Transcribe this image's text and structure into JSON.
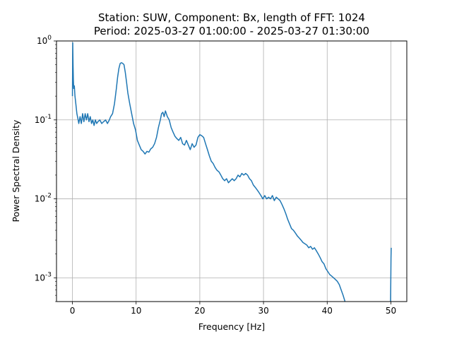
{
  "chart_data": {
    "type": "line",
    "title": [
      "Station: SUW, Component: Bx, length of FFT: 1024",
      "Period: 2025-03-27 01:00:00 - 2025-03-27 01:30:00"
    ],
    "xlabel": "Frequency [Hz]",
    "ylabel": "Power Spectral Density",
    "xlim": [
      -2.5,
      52.5
    ],
    "ylim": [
      0.0005,
      1
    ],
    "yscale": "log",
    "grid": true,
    "x_ticks": [
      0,
      10,
      20,
      30,
      40,
      50
    ],
    "x_tick_labels": [
      "0",
      "10",
      "20",
      "30",
      "40",
      "50"
    ],
    "y_ticks": [
      0.001,
      0.01,
      0.1,
      1
    ],
    "y_tick_labels": [
      "10^-3",
      "10^-2",
      "10^-1",
      "10^0"
    ],
    "series": [
      {
        "color": "#1f77b4",
        "x": [
          0.0,
          0.05,
          0.1,
          0.15,
          0.2,
          0.3,
          0.4,
          0.5,
          0.7,
          0.9,
          1.0,
          1.2,
          1.4,
          1.6,
          1.8,
          2.0,
          2.2,
          2.4,
          2.6,
          2.8,
          3.0,
          3.2,
          3.4,
          3.6,
          3.8,
          4.0,
          4.3,
          4.6,
          4.9,
          5.2,
          5.5,
          5.8,
          6.0,
          6.3,
          6.6,
          6.9,
          7.1,
          7.3,
          7.5,
          7.7,
          7.9,
          8.1,
          8.3,
          8.5,
          8.7,
          9.0,
          9.3,
          9.6,
          9.9,
          10.2,
          10.5,
          10.8,
          11.1,
          11.4,
          11.7,
          12.0,
          12.3,
          12.6,
          12.9,
          13.2,
          13.5,
          13.8,
          14.0,
          14.2,
          14.4,
          14.6,
          14.9,
          15.2,
          15.5,
          15.8,
          16.1,
          16.4,
          16.7,
          17.0,
          17.3,
          17.6,
          17.9,
          18.2,
          18.5,
          18.8,
          19.1,
          19.4,
          19.7,
          20.0,
          20.3,
          20.6,
          20.9,
          21.2,
          21.5,
          21.8,
          22.1,
          22.4,
          22.7,
          23.0,
          23.3,
          23.6,
          23.9,
          24.2,
          24.5,
          24.8,
          25.1,
          25.4,
          25.7,
          26.0,
          26.3,
          26.6,
          26.9,
          27.2,
          27.5,
          27.8,
          28.1,
          28.4,
          28.7,
          29.0,
          29.3,
          29.6,
          29.9,
          30.2,
          30.5,
          30.8,
          31.1,
          31.4,
          31.7,
          32.0,
          32.3,
          32.6,
          32.9,
          33.2,
          33.5,
          33.8,
          34.1,
          34.4,
          34.7,
          35.0,
          35.3,
          35.6,
          35.9,
          36.2,
          36.5,
          36.8,
          37.1,
          37.4,
          37.7,
          38.0,
          38.3,
          38.6,
          38.9,
          39.2,
          39.5,
          39.8,
          40.1,
          40.4,
          40.7,
          41.0,
          41.3,
          41.6,
          41.9,
          42.2,
          42.5,
          42.8
        ],
        "y": [
          0.2,
          0.95,
          0.5,
          0.32,
          0.25,
          0.27,
          0.2,
          0.17,
          0.12,
          0.1,
          0.09,
          0.11,
          0.09,
          0.12,
          0.095,
          0.12,
          0.1,
          0.12,
          0.095,
          0.11,
          0.09,
          0.1,
          0.085,
          0.1,
          0.09,
          0.095,
          0.1,
          0.09,
          0.095,
          0.1,
          0.09,
          0.1,
          0.11,
          0.12,
          0.16,
          0.25,
          0.35,
          0.45,
          0.52,
          0.53,
          0.52,
          0.5,
          0.4,
          0.3,
          0.22,
          0.16,
          0.12,
          0.09,
          0.075,
          0.055,
          0.048,
          0.042,
          0.04,
          0.037,
          0.04,
          0.039,
          0.043,
          0.045,
          0.05,
          0.06,
          0.08,
          0.1,
          0.12,
          0.125,
          0.11,
          0.13,
          0.11,
          0.1,
          0.08,
          0.07,
          0.062,
          0.058,
          0.055,
          0.06,
          0.05,
          0.048,
          0.055,
          0.048,
          0.042,
          0.05,
          0.045,
          0.048,
          0.06,
          0.065,
          0.063,
          0.06,
          0.05,
          0.042,
          0.035,
          0.03,
          0.028,
          0.025,
          0.023,
          0.022,
          0.02,
          0.018,
          0.017,
          0.018,
          0.016,
          0.017,
          0.018,
          0.017,
          0.018,
          0.02,
          0.019,
          0.021,
          0.02,
          0.021,
          0.02,
          0.018,
          0.017,
          0.015,
          0.014,
          0.013,
          0.012,
          0.011,
          0.01,
          0.011,
          0.01,
          0.0105,
          0.01,
          0.011,
          0.0095,
          0.0105,
          0.01,
          0.0095,
          0.0085,
          0.0075,
          0.0065,
          0.0055,
          0.0048,
          0.0042,
          0.004,
          0.0037,
          0.0034,
          0.0032,
          0.003,
          0.0028,
          0.0027,
          0.0026,
          0.0024,
          0.0025,
          0.0023,
          0.0024,
          0.0022,
          0.002,
          0.0018,
          0.0016,
          0.0015,
          0.0013,
          0.0012,
          0.0011,
          0.00105,
          0.001,
          0.00095,
          0.0009,
          0.00082,
          0.0007,
          0.0006,
          0.0005
        ]
      },
      {
        "color": "#1f77b4",
        "x": [
          49.95,
          49.98,
          50.0,
          50.02,
          50.05
        ],
        "y": [
          0.0005,
          0.0008,
          0.0012,
          0.0018,
          0.0024
        ]
      }
    ]
  }
}
